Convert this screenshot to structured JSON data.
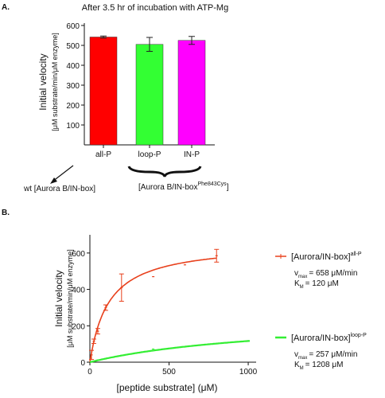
{
  "panel_a": {
    "label": "A.",
    "title": "After 3.5 hr of incubation with ATP-Mg",
    "ylabel": "Initial velocity",
    "ylabel_units": "[μM substrate/min/μM enzyme]",
    "arrow_label": "wt [Aurora B/IN-box]",
    "brace_label_main": "[Aurora B/IN-box",
    "brace_label_sup": "Phe843Cys",
    "brace_label_end": "]"
  },
  "panel_b": {
    "label": "B.",
    "xlabel": "[peptide substrate] (μM)",
    "ylabel": "Initial velocity",
    "ylabel_units": "[μM substrate/min/μM enzyme]",
    "legend": [
      {
        "main": "[Aurora/IN-box]",
        "sup": "all-P",
        "vmax_line": "= 658 μM/min",
        "km_line": "= 120 μM"
      },
      {
        "main": "[Aurora/IN-box]",
        "sup": "loop-P",
        "vmax_line": "= 257 μM/min",
        "km_line": "= 1208 μM"
      }
    ],
    "vmax_sym": "v",
    "vmax_sub": "max",
    "km_sym": "K",
    "km_sub": "M"
  },
  "chart_data": [
    {
      "type": "bar",
      "title": "After 3.5 hr of incubation with ATP-Mg",
      "ylabel": "Initial velocity [μM substrate/min/μM enzyme]",
      "categories": [
        "all-P",
        "loop-P",
        "IN-P"
      ],
      "values": [
        542,
        505,
        525
      ],
      "errors": [
        5,
        35,
        20
      ],
      "colors": [
        "#ff0000",
        "#33ff33",
        "#ff00ff"
      ],
      "ylim": [
        0,
        600
      ],
      "yticks": [
        100,
        200,
        300,
        400,
        500,
        600
      ],
      "grid": false
    },
    {
      "type": "line",
      "xlabel": "[peptide substrate] (μM)",
      "ylabel": "Initial velocity [μM substrate/min/μM enzyme]",
      "xlim": [
        0,
        1050
      ],
      "ylim": [
        0,
        700
      ],
      "xticks": [
        0,
        500,
        1000
      ],
      "yticks": [
        0,
        200,
        400,
        600
      ],
      "legend_position": "right",
      "series": [
        {
          "name": "[Aurora/IN-box]all-P",
          "color": "#e8401c",
          "vmax": 658,
          "km": 120,
          "fit_x_max": 800,
          "points": [
            {
              "x": 10,
              "y": 40,
              "err": 25
            },
            {
              "x": 25,
              "y": 115,
              "err": 12
            },
            {
              "x": 50,
              "y": 170,
              "err": 15
            },
            {
              "x": 100,
              "y": 300,
              "err": 15
            },
            {
              "x": 200,
              "y": 410,
              "err": 75
            },
            {
              "x": 400,
              "y": 470,
              "err": 0
            },
            {
              "x": 600,
              "y": 535,
              "err": 0
            },
            {
              "x": 800,
              "y": 585,
              "err": 35
            }
          ]
        },
        {
          "name": "[Aurora/IN-box]loop-P",
          "color": "#33ee33",
          "vmax": 257,
          "km": 1208,
          "fit_x_max": 1010,
          "points": [
            {
              "x": 10,
              "y": 4,
              "err": 0
            },
            {
              "x": 50,
              "y": 12,
              "err": 0
            },
            {
              "x": 100,
              "y": 20,
              "err": 0
            },
            {
              "x": 200,
              "y": 38,
              "err": 0
            },
            {
              "x": 400,
              "y": 72,
              "err": 0
            },
            {
              "x": 1000,
              "y": 118,
              "err": 0
            }
          ]
        }
      ]
    }
  ]
}
